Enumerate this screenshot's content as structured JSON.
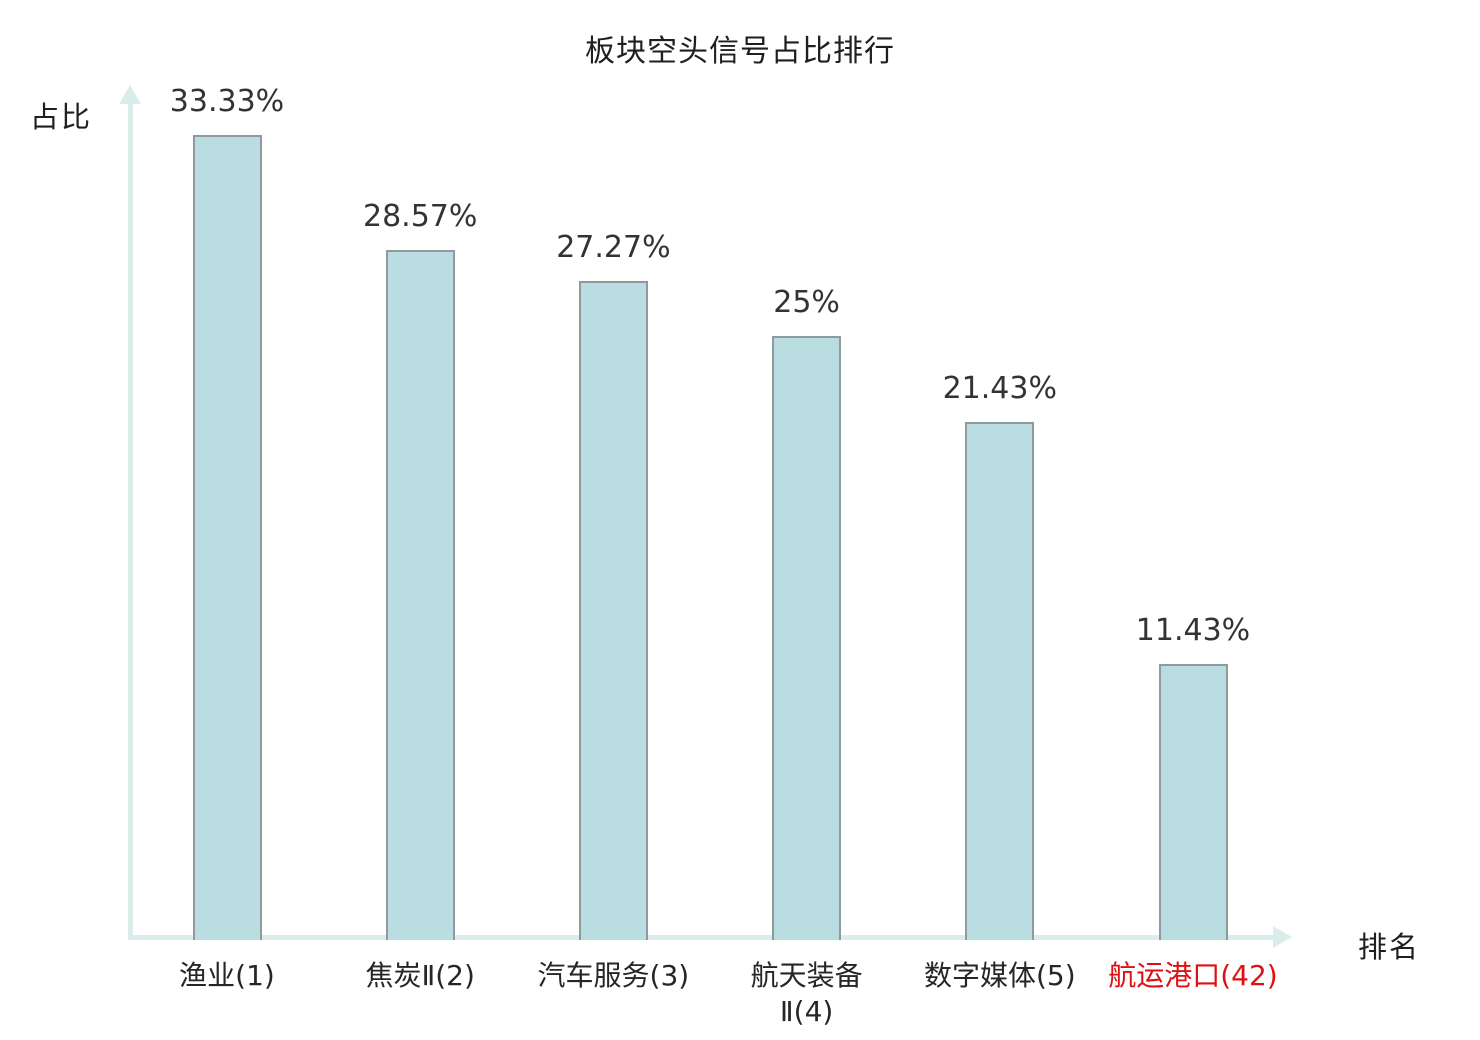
{
  "chart_data": {
    "type": "bar",
    "title": "板块空头信号占比排行",
    "ylabel": "占比",
    "xlabel": "排名",
    "categories": [
      "渔业(1)",
      "焦炭Ⅱ(2)",
      "汽车服务(3)",
      "航天装备Ⅱ(4)",
      "数字媒体(5)",
      "航运港口(42)"
    ],
    "category_lines": [
      [
        "渔业(1)"
      ],
      [
        "焦炭Ⅱ(2)"
      ],
      [
        "汽车服务(3)"
      ],
      [
        "航天装备",
        "Ⅱ(4)"
      ],
      [
        "数字媒体(5)"
      ],
      [
        "航运港口(42)"
      ]
    ],
    "values": [
      33.33,
      28.57,
      27.27,
      25,
      21.43,
      11.43
    ],
    "value_labels": [
      "33.33%",
      "28.57%",
      "27.27%",
      "25%",
      "21.43%",
      "11.43%"
    ],
    "highlight_index": 5,
    "ylim": [
      0,
      34.7
    ],
    "grid": false,
    "legend": "none",
    "colors": {
      "bar_fill": "#b9dde1",
      "bar_border": "#8d9b9c",
      "axis": "#daedeb",
      "text": "#262626",
      "value_text": "#333333",
      "highlight": "#dd1111"
    }
  }
}
